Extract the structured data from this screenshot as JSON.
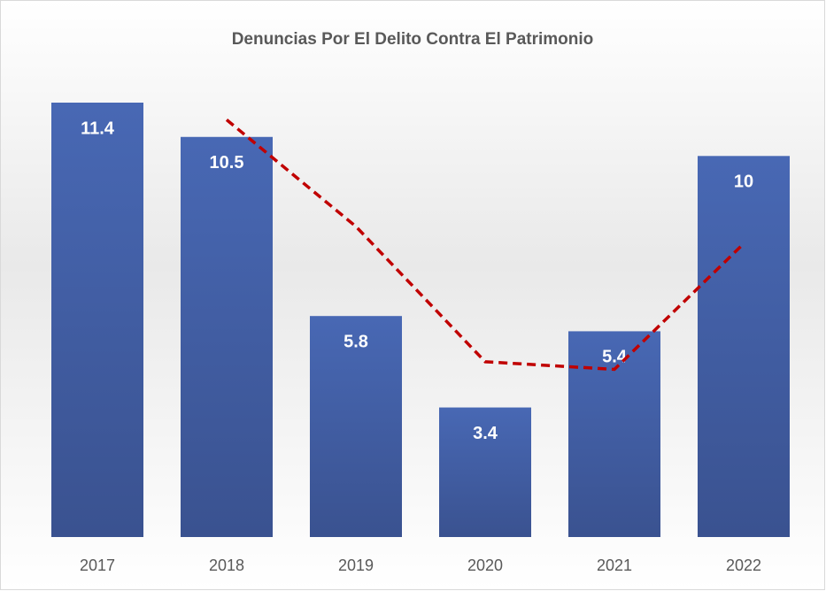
{
  "chart_data": {
    "type": "bar",
    "title": "Denuncias Por El Delito Contra El Patrimonio",
    "categories": [
      "2017",
      "2018",
      "2019",
      "2020",
      "2021",
      "2022"
    ],
    "values": [
      11.4,
      10.5,
      5.8,
      3.4,
      5.4,
      10
    ],
    "color": "#4466b0",
    "trend": {
      "values": [
        null,
        10.95,
        8.15,
        4.6,
        4.4,
        7.7
      ],
      "color": "#c00000"
    },
    "ylim": [
      0,
      12
    ]
  }
}
